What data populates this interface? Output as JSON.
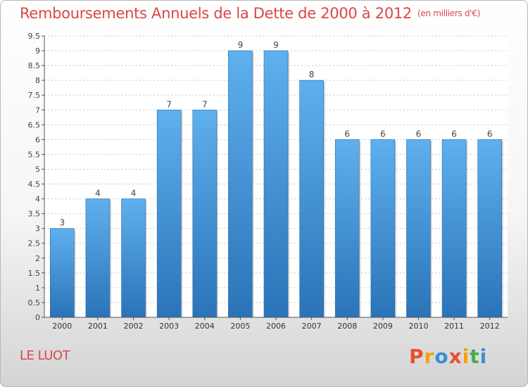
{
  "header": {
    "title": "Remboursements Annuels de la Dette de 2000 à 2012",
    "unit": "(en milliers d'€)"
  },
  "footer": {
    "commune": "LE LUOT",
    "logo_text": "Proxiti",
    "logo_colors": [
      "#e8502e",
      "#f4a20a",
      "#3a8fd8",
      "#e8502e",
      "#f4a20a",
      "#43b04a",
      "#3a8fd8"
    ]
  },
  "colors": {
    "bar_top": "#5fb0ee",
    "bar_bottom": "#2a73b8",
    "axis": "#555555",
    "grid": "#c8c8c8"
  },
  "chart_data": {
    "type": "bar",
    "title": "Remboursements Annuels de la Dette de 2000 à 2012",
    "subtitle": "(en milliers d'€)",
    "categories": [
      "2000",
      "2001",
      "2002",
      "2003",
      "2004",
      "2005",
      "2006",
      "2007",
      "2008",
      "2009",
      "2010",
      "2011",
      "2012"
    ],
    "values": [
      3,
      4,
      4,
      7,
      7,
      9,
      9,
      8,
      6,
      6,
      6,
      6,
      6
    ],
    "data_labels": [
      "3",
      "4",
      "4",
      "7",
      "7",
      "9",
      "9",
      "8",
      "6",
      "6",
      "6",
      "6",
      "6"
    ],
    "yticks": [
      "0",
      "0.5",
      "1",
      "1.5",
      "2",
      "2.5",
      "3",
      "3.5",
      "4",
      "4.5",
      "5",
      "5.5",
      "6",
      "6.5",
      "7",
      "7.5",
      "8",
      "8.5",
      "9",
      "9.5"
    ],
    "ylim": [
      0,
      9.5
    ],
    "xlabel": "",
    "ylabel": "",
    "grid": true
  }
}
